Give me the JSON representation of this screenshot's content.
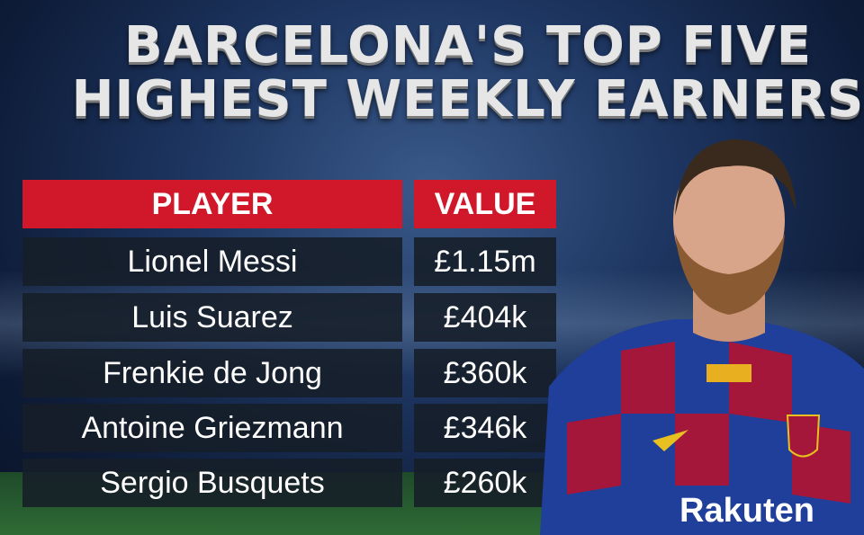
{
  "title": {
    "line1": "BARCELONA'S TOP FIVE",
    "line2": "HIGHEST WEEKLY EARNERS"
  },
  "table": {
    "headers": {
      "player": "PLAYER",
      "value": "VALUE"
    },
    "rows": [
      {
        "player": "Lionel Messi",
        "value": "£1.15m"
      },
      {
        "player": "Luis Suarez",
        "value": "£404k"
      },
      {
        "player": "Frenkie de Jong",
        "value": "£360k"
      },
      {
        "player": "Antoine Griezmann",
        "value": "£346k"
      },
      {
        "player": "Sergio Busquets",
        "value": "£260k"
      }
    ]
  },
  "photo": {
    "sponsor": "Rakuten"
  },
  "colors": {
    "header": "#d0182a",
    "row": "#161e28",
    "jersey_blue": "#1f3f9a",
    "jersey_red": "#a5173a"
  }
}
